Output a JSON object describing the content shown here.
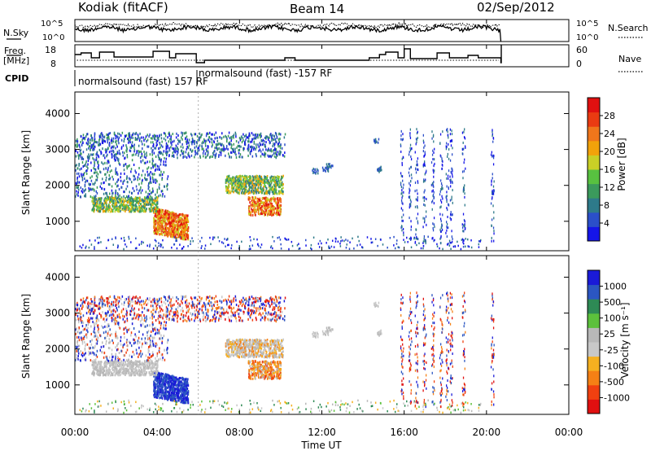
{
  "header": {
    "station": "Kodiak (fitACF)",
    "beam": "Beam 14",
    "date": "02/Sep/2012"
  },
  "left_labels": {
    "nsky": "N.Sky",
    "freq": "Freq.",
    "freq_unit": "[MHz]",
    "cpid": "CPID"
  },
  "right_labels": {
    "nsearch": "N.Search",
    "nave": "Nave"
  },
  "cpid_texts": [
    "normalsound (fast) 157 RF",
    "normalsound (fast) -157 RF"
  ],
  "noise_axis": {
    "left_ticks": [
      "10^5",
      "10^0"
    ],
    "right_ticks": [
      "10^5",
      "10^0"
    ]
  },
  "freq_axis": {
    "left_ticks": [
      "18",
      "8"
    ],
    "right_ticks": [
      "60",
      "0"
    ]
  },
  "colors": {
    "power_scale": [
      "#1515e8",
      "#2b4fc9",
      "#2e7a8a",
      "#3b9a5c",
      "#58c140",
      "#c9cf26",
      "#f2a20a",
      "#f0761b",
      "#ea3b12",
      "#e01010"
    ],
    "velocity_scale": [
      "#e01010",
      "#f04010",
      "#f58015",
      "#f5b020",
      "#c8c8c8",
      "#b8b8b8",
      "#5cc13c",
      "#2e8a55",
      "#2b56c2",
      "#1a1ad8"
    ]
  },
  "chart_data": [
    {
      "type": "heatmap",
      "title": "",
      "xlabel": "Time UT",
      "ylabel": "Slant Range [km]",
      "xlim": [
        "00:00",
        "24:00"
      ],
      "ylim": [
        180,
        4600
      ],
      "x_ticks": [
        "00:00",
        "04:00",
        "08:00",
        "12:00",
        "16:00",
        "20:00",
        "00:00"
      ],
      "y_ticks": [
        "1000",
        "2000",
        "3000",
        "4000"
      ],
      "colorbar": {
        "label": "Power [dB]",
        "ticks": [
          "4",
          "8",
          "12",
          "16",
          "20",
          "24",
          "28"
        ],
        "range": [
          0,
          30
        ]
      }
    },
    {
      "type": "heatmap",
      "title": "",
      "xlabel": "Time UT",
      "ylabel": "Slant Range [km]",
      "xlim": [
        "00:00",
        "24:00"
      ],
      "ylim": [
        180,
        4600
      ],
      "x_ticks": [
        "00:00",
        "04:00",
        "08:00",
        "12:00",
        "16:00",
        "20:00",
        "00:00"
      ],
      "y_ticks": [
        "1000",
        "2000",
        "3000",
        "4000"
      ],
      "colorbar": {
        "label": "Velocity [m s⁻¹]",
        "ticks": [
          "1000",
          "500",
          "100",
          "25",
          "-25",
          "-100",
          "-500",
          "-1000"
        ]
      }
    }
  ]
}
